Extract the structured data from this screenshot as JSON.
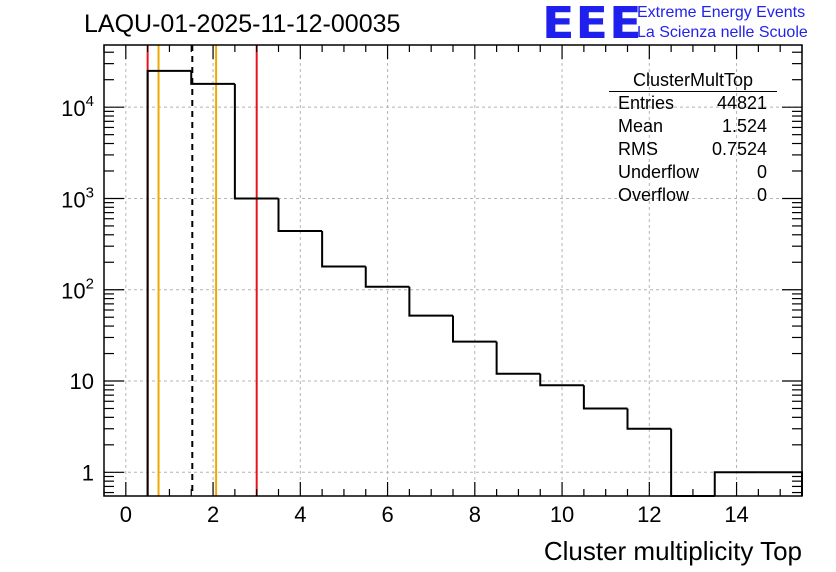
{
  "title": "LAQU-01-2025-11-12-00035",
  "logo": {
    "mark": "EEE",
    "line1": "Extreme Energy Events",
    "line2": "La Scienza nelle Scuole"
  },
  "stats_box": {
    "title": "ClusterMultTop",
    "rows": [
      {
        "label": "Entries",
        "value": "44821"
      },
      {
        "label": "Mean",
        "value": "1.524"
      },
      {
        "label": "RMS",
        "value": "0.7524"
      },
      {
        "label": "Underflow",
        "value": "0"
      },
      {
        "label": "Overflow",
        "value": "0"
      }
    ]
  },
  "colors": {
    "histogram": "#000000",
    "red_line": "#e8141c",
    "orange_line": "#f0a800",
    "mean_line": "#000000",
    "grid": "#b4b4b4"
  },
  "chart_data": {
    "type": "histogram",
    "title": "LAQU-01-2025-11-12-00035",
    "xlabel": "Cluster multiplicity Top",
    "ylabel": "",
    "yscale": "log",
    "xlim": [
      -0.5,
      15.5
    ],
    "ylim": [
      0.55,
      48000
    ],
    "grid": true,
    "bin_width": 1,
    "bin_edges": [
      0.5,
      1.5,
      2.5,
      3.5,
      4.5,
      5.5,
      6.5,
      7.5,
      8.5,
      9.5,
      10.5,
      11.5,
      12.5,
      13.5,
      14.5,
      15.5
    ],
    "bins": [
      {
        "x": 1,
        "count": 25000
      },
      {
        "x": 2,
        "count": 18000
      },
      {
        "x": 3,
        "count": 1000
      },
      {
        "x": 4,
        "count": 440
      },
      {
        "x": 5,
        "count": 180
      },
      {
        "x": 6,
        "count": 108
      },
      {
        "x": 7,
        "count": 52
      },
      {
        "x": 8,
        "count": 27
      },
      {
        "x": 9,
        "count": 12
      },
      {
        "x": 10,
        "count": 9
      },
      {
        "x": 11,
        "count": 5
      },
      {
        "x": 12,
        "count": 3
      },
      {
        "x": 13,
        "count": 0
      },
      {
        "x": 14,
        "count": 1
      },
      {
        "x": 15,
        "count": 1
      }
    ],
    "x_ticks": [
      {
        "value": 0,
        "label": "0"
      },
      {
        "value": 2,
        "label": "2"
      },
      {
        "value": 4,
        "label": "4"
      },
      {
        "value": 6,
        "label": "6"
      },
      {
        "value": 8,
        "label": "8"
      },
      {
        "value": 10,
        "label": "10"
      },
      {
        "value": 12,
        "label": "12"
      },
      {
        "value": 14,
        "label": "14"
      }
    ],
    "y_ticks": [
      {
        "value": 1,
        "base": "1",
        "exp": ""
      },
      {
        "value": 10,
        "base": "10",
        "exp": ""
      },
      {
        "value": 100,
        "base": "10",
        "exp": "2"
      },
      {
        "value": 1000,
        "base": "10",
        "exp": "3"
      },
      {
        "value": 10000,
        "base": "10",
        "exp": "4"
      }
    ],
    "vertical_lines": [
      {
        "x": 0.5,
        "color": "red",
        "style": "solid"
      },
      {
        "x": 3.0,
        "color": "red",
        "style": "solid"
      },
      {
        "x": 0.75,
        "color": "orange",
        "style": "solid"
      },
      {
        "x": 2.07,
        "color": "orange",
        "style": "solid"
      },
      {
        "x": 1.524,
        "color": "black",
        "style": "dashed"
      }
    ]
  }
}
